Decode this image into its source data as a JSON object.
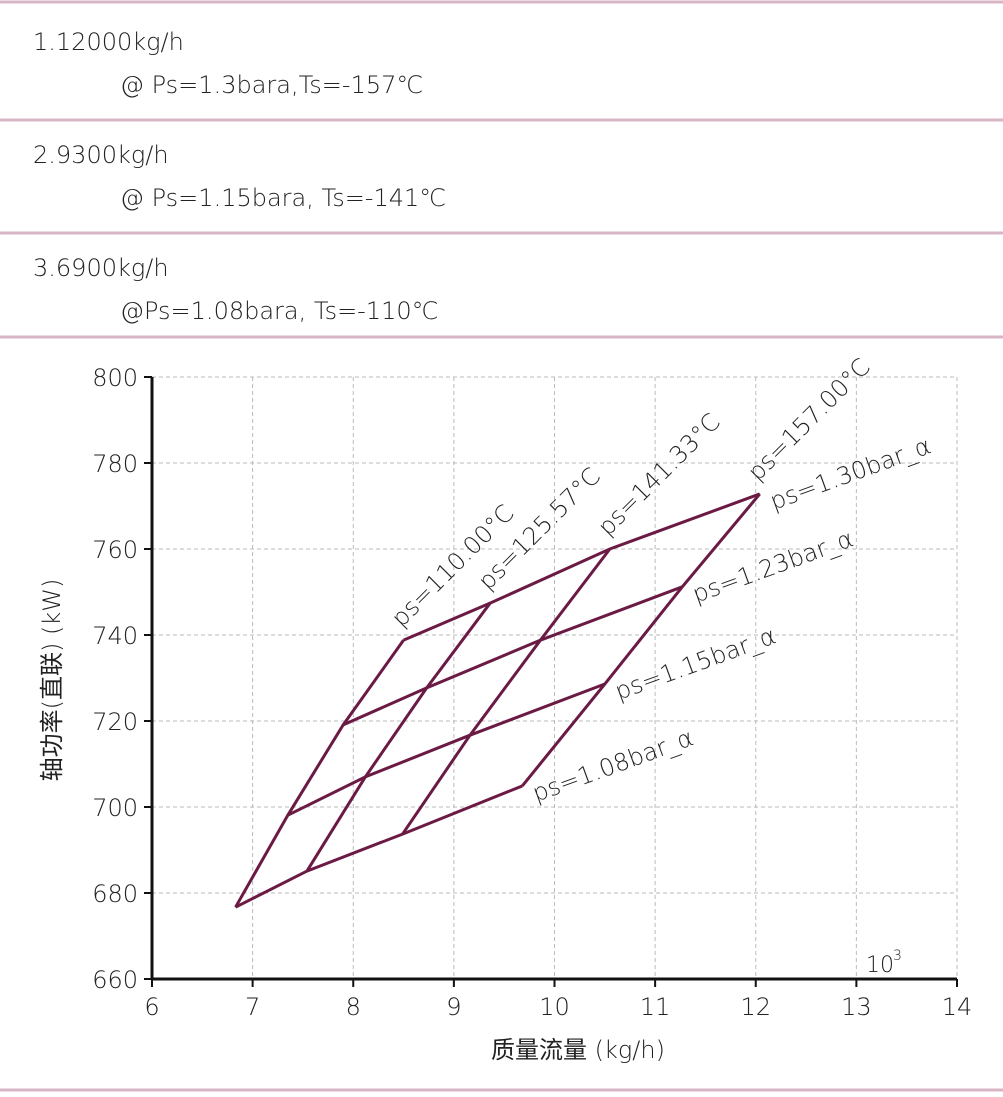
{
  "conditions": [
    {
      "flow": "1.12000kg/h",
      "condition": "@ Ps=1.3bara,Ts=-157℃"
    },
    {
      "flow": "2.9300kg/h",
      "condition": "@ Ps=1.15bara, Ts=-141℃"
    },
    {
      "flow": "3.6900kg/h",
      "condition": "@Ps=1.08bara, Ts=-110℃"
    }
  ],
  "chart_data": {
    "type": "carpet",
    "x_label": "质量流量 (kg/h)",
    "y_label": "轴功率(直联) (kW)",
    "x_scale_base": 10,
    "x_scale_power": 3,
    "xlim": [
      6,
      14
    ],
    "xticks": [
      6,
      7,
      8,
      9,
      10,
      11,
      12,
      13,
      14
    ],
    "ylim": [
      660,
      800
    ],
    "yticks": [
      660,
      680,
      700,
      720,
      740,
      760,
      780,
      800
    ],
    "grid": true,
    "color": "#6b1a44",
    "isotherm_labels": [
      "ps=110.00°C",
      "ps=125.57°C",
      "ps=141.33°C",
      "ps=157.00°C"
    ],
    "series": [
      {
        "name": "ps=1.30bar_α",
        "x": [
          8.5,
          9.36,
          10.55,
          12.04
        ],
        "values": [
          738.8,
          747.4,
          760.0,
          772.8
        ]
      },
      {
        "name": "ps=1.23bar_α",
        "x": [
          7.9,
          8.73,
          9.86,
          11.27
        ],
        "values": [
          719.1,
          727.7,
          738.8,
          751.2
        ]
      },
      {
        "name": "ps=1.15bar_α",
        "x": [
          7.35,
          8.12,
          9.16,
          10.5
        ],
        "values": [
          698.1,
          707.0,
          716.7,
          728.6
        ]
      },
      {
        "name": "ps=1.08bar_α",
        "x": [
          6.83,
          7.54,
          8.49,
          9.68
        ],
        "values": [
          676.7,
          685.1,
          693.7,
          704.9
        ]
      }
    ]
  }
}
